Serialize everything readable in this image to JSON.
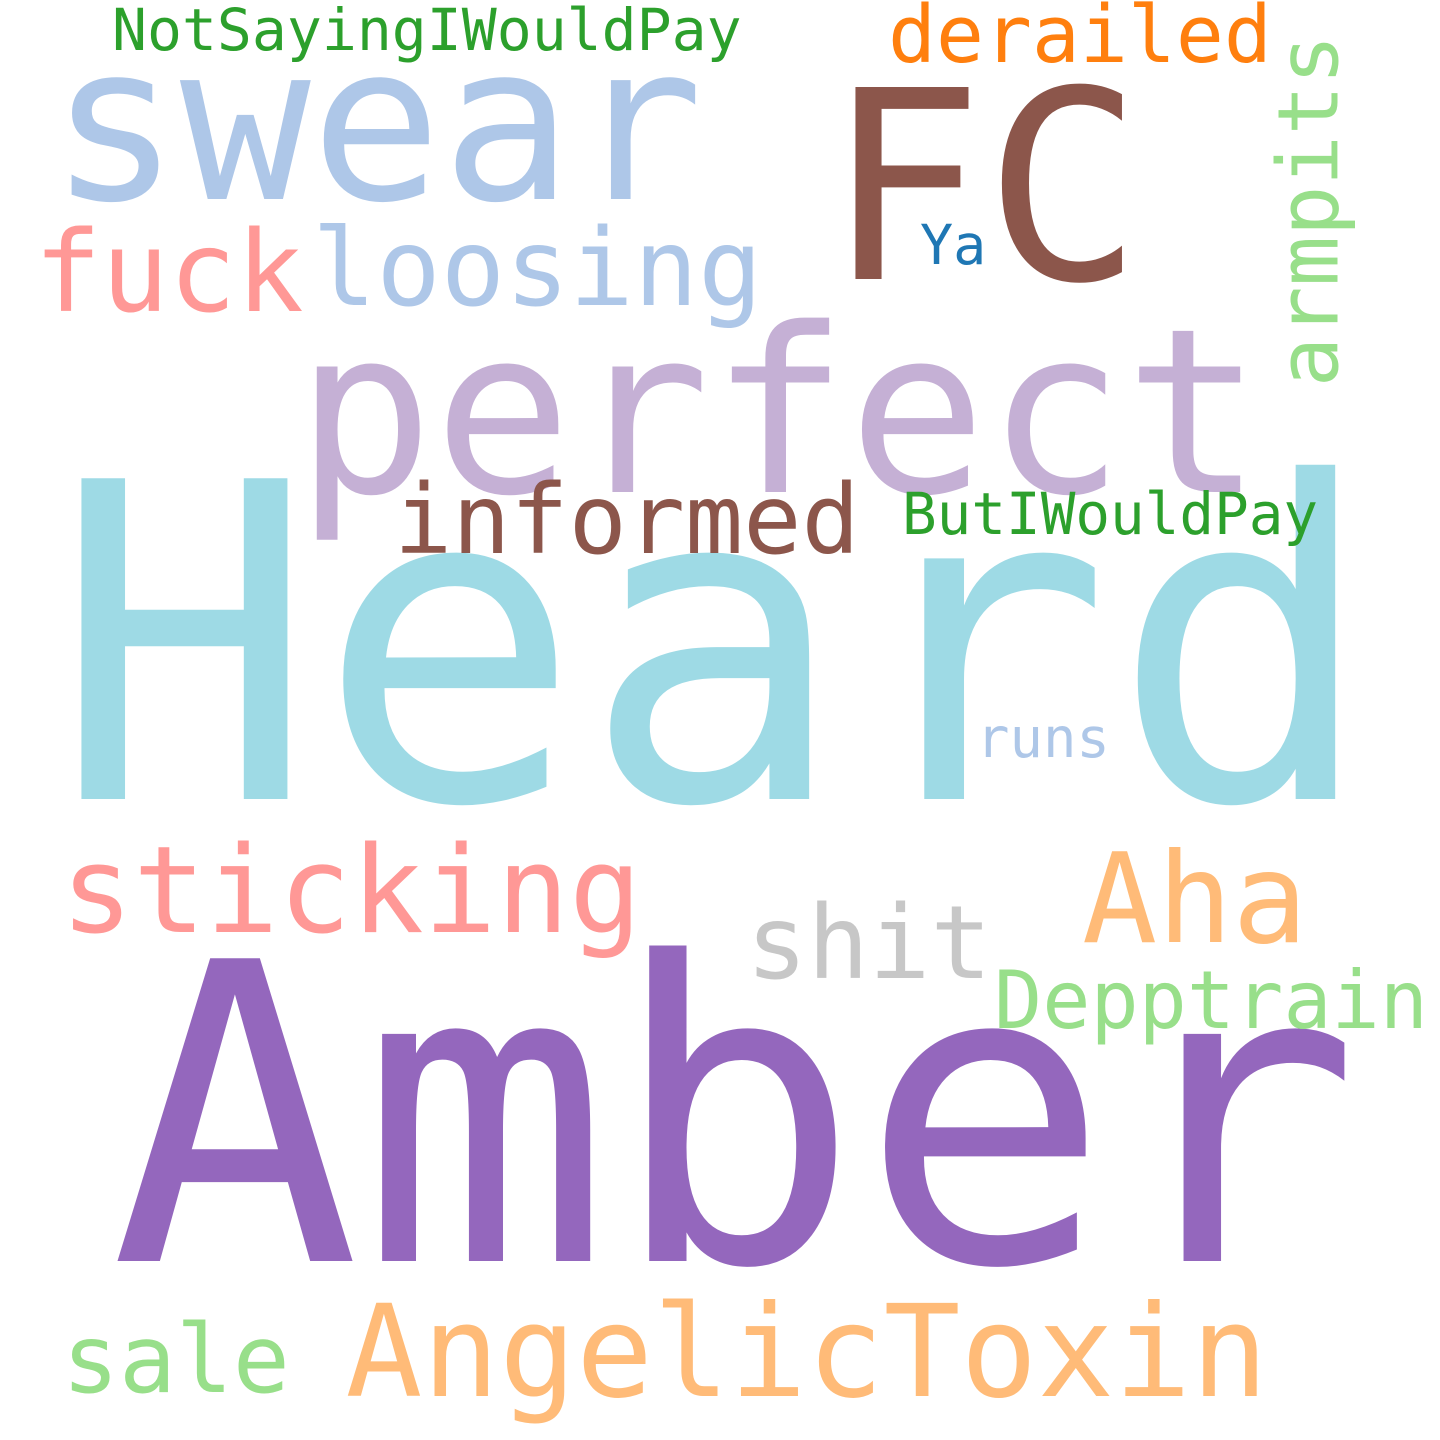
{
  "words": [
    {
      "text": "Heard",
      "color": "#9edae5"
    },
    {
      "text": "Amber",
      "color": "#9467bd"
    },
    {
      "text": "FC",
      "color": "#8c564b"
    },
    {
      "text": "perfect",
      "color": "#c5b0d5"
    },
    {
      "text": "swear",
      "color": "#aec7e8"
    },
    {
      "text": "AngelicToxin",
      "color": "#ffbb78"
    },
    {
      "text": "sticking",
      "color": "#ff9896"
    },
    {
      "text": "loosing",
      "color": "#aec7e8"
    },
    {
      "text": "fuck",
      "color": "#ff9896"
    },
    {
      "text": "informed",
      "color": "#8c564b"
    },
    {
      "text": "Aha",
      "color": "#ffbb78"
    },
    {
      "text": "armpits",
      "color": "#98df8a"
    },
    {
      "text": "shit",
      "color": "#c7c7c7"
    },
    {
      "text": "derailed",
      "color": "#ff7f0e"
    },
    {
      "text": "Depptrain",
      "color": "#98df8a"
    },
    {
      "text": "sale",
      "color": "#98df8a"
    },
    {
      "text": "NotSayingIWouldPay",
      "color": "#2ca02c"
    },
    {
      "text": "ButIWouldPay",
      "color": "#2ca02c"
    },
    {
      "text": "runs",
      "color": "#aec7e8"
    },
    {
      "text": "Ya",
      "color": "#1f77b4"
    }
  ]
}
